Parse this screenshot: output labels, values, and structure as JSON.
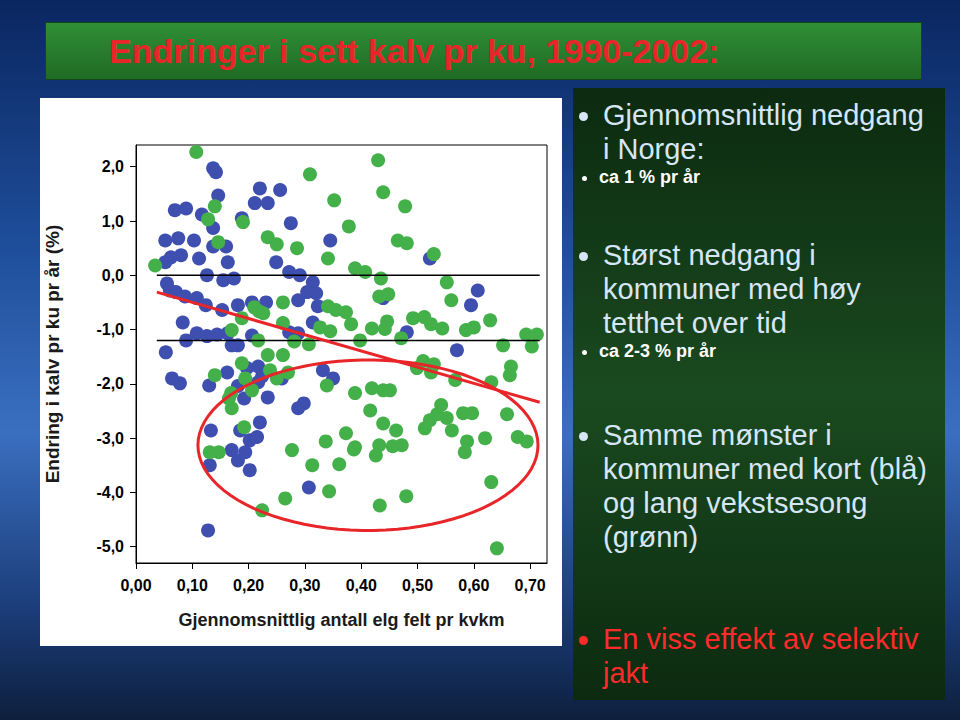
{
  "chart_data": {
    "type": "scatter",
    "title": "Endringer i sett kalv pr ku, 1990-2002:",
    "xlabel": "Gjennomsnittlig antall elg felt pr kvkm",
    "ylabel": "Endring i kalv pr ku pr år (%)",
    "xlim": [
      0,
      0.73
    ],
    "ylim": [
      -5.3,
      2.4
    ],
    "xticks": [
      {
        "value": 0,
        "label": "0,00"
      },
      {
        "value": 0.1,
        "label": "0,10"
      },
      {
        "value": 0.2,
        "label": "0,20"
      },
      {
        "value": 0.3,
        "label": "0,30"
      },
      {
        "value": 0.4,
        "label": "0,40"
      },
      {
        "value": 0.5,
        "label": "0,50"
      },
      {
        "value": 0.6,
        "label": "0,60"
      },
      {
        "value": 0.7,
        "label": "0,70"
      }
    ],
    "yticks": [
      {
        "value": -5,
        "label": "-5,0"
      },
      {
        "value": -4,
        "label": "-4,0"
      },
      {
        "value": -3,
        "label": "-3,0"
      },
      {
        "value": -2,
        "label": "-2,0"
      },
      {
        "value": -1,
        "label": "-1,0"
      },
      {
        "value": 0,
        "label": "0,0"
      },
      {
        "value": 1,
        "label": "1,0"
      },
      {
        "value": 2,
        "label": "2,0"
      }
    ],
    "grid": false,
    "series": [
      {
        "color": "#3e4fb0",
        "marker": "circle",
        "values": [
          [
            0.137,
            1.97
          ],
          [
            0.142,
            1.9
          ],
          [
            0.069,
            1.2
          ],
          [
            0.089,
            1.23
          ],
          [
            0.117,
            1.12
          ],
          [
            0.146,
            1.47
          ],
          [
            0.22,
            1.6
          ],
          [
            0.234,
            1.33
          ],
          [
            0.256,
            1.57
          ],
          [
            0.211,
            1.33
          ],
          [
            0.188,
            1.05
          ],
          [
            0.137,
            0.87
          ],
          [
            0.052,
            0.64
          ],
          [
            0.075,
            0.68
          ],
          [
            0.103,
            0.64
          ],
          [
            0.137,
            0.53
          ],
          [
            0.16,
            0.53
          ],
          [
            0.052,
            0.24
          ],
          [
            0.062,
            0.33
          ],
          [
            0.08,
            0.37
          ],
          [
            0.112,
            0.31
          ],
          [
            0.163,
            0.24
          ],
          [
            0.249,
            0.24
          ],
          [
            0.272,
            0.06
          ],
          [
            0.291,
            0
          ],
          [
            0.126,
            0
          ],
          [
            0.155,
            -0.09
          ],
          [
            0.174,
            -0.06
          ],
          [
            0.055,
            -0.15
          ],
          [
            0.06,
            -0.28
          ],
          [
            0.071,
            -0.31
          ],
          [
            0.087,
            -0.39
          ],
          [
            0.108,
            -0.42
          ],
          [
            0.124,
            -0.55
          ],
          [
            0.153,
            -0.64
          ],
          [
            0.181,
            -0.55
          ],
          [
            0.206,
            -0.5
          ],
          [
            0.231,
            -0.5
          ],
          [
            0.288,
            -0.46
          ],
          [
            0.323,
            -0.57
          ],
          [
            0.304,
            -0.31
          ],
          [
            0.314,
            -0.87
          ],
          [
            0.083,
            -0.87
          ],
          [
            0.108,
            -1.07
          ],
          [
            0.126,
            -1.12
          ],
          [
            0.144,
            -1.09
          ],
          [
            0.163,
            -1.07
          ],
          [
            0.181,
            -1.29
          ],
          [
            0.053,
            -1.42
          ],
          [
            0.089,
            -1.2
          ],
          [
            0.17,
            -1.29
          ],
          [
            0.206,
            -1.11
          ],
          [
            0.272,
            -1.05
          ],
          [
            0.288,
            -1.07
          ],
          [
            0.217,
            -1.68
          ],
          [
            0.224,
            -1.86
          ],
          [
            0.197,
            -1.71
          ],
          [
            0.162,
            -1.79
          ],
          [
            0.064,
            -1.9
          ],
          [
            0.078,
            -1.99
          ],
          [
            0.13,
            -2.03
          ],
          [
            0.181,
            -2.04
          ],
          [
            0.217,
            -1.97
          ],
          [
            0.259,
            -1.9
          ],
          [
            0.332,
            -1.75
          ],
          [
            0.35,
            -1.9
          ],
          [
            0.298,
            -2.36
          ],
          [
            0.288,
            -2.45
          ],
          [
            0.234,
            -2.25
          ],
          [
            0.192,
            -2.27
          ],
          [
            0.133,
            -2.86
          ],
          [
            0.185,
            -2.86
          ],
          [
            0.202,
            -3.04
          ],
          [
            0.194,
            -3.26
          ],
          [
            0.215,
            -2.98
          ],
          [
            0.22,
            -2.71
          ],
          [
            0.17,
            -3.22
          ],
          [
            0.181,
            -3.41
          ],
          [
            0.131,
            -3.5
          ],
          [
            0.202,
            -3.59
          ],
          [
            0.128,
            -4.7
          ],
          [
            0.307,
            -3.91
          ],
          [
            0.522,
            0.31
          ],
          [
            0.607,
            -0.28
          ],
          [
            0.57,
            -1.38
          ],
          [
            0.481,
            -1.05
          ],
          [
            0.595,
            -0.55
          ],
          [
            0.345,
            0.64
          ],
          [
            0.439,
            -0.42
          ],
          [
            0.275,
            0.96
          ],
          [
            0.314,
            -0.13
          ],
          [
            0.32,
            -0.33
          ]
        ]
      },
      {
        "color": "#44b04a",
        "marker": "circle",
        "values": [
          [
            0.107,
            2.27
          ],
          [
            0.034,
            0.18
          ],
          [
            0.14,
            1.27
          ],
          [
            0.128,
            1.03
          ],
          [
            0.146,
            0.61
          ],
          [
            0.19,
            0.98
          ],
          [
            0.234,
            0.7
          ],
          [
            0.25,
            0.57
          ],
          [
            0.286,
            0.5
          ],
          [
            0.309,
            1.86
          ],
          [
            0.341,
            0.31
          ],
          [
            0.352,
            1.38
          ],
          [
            0.378,
            0.9
          ],
          [
            0.43,
            2.12
          ],
          [
            0.439,
            1.53
          ],
          [
            0.478,
            1.27
          ],
          [
            0.465,
            0.64
          ],
          [
            0.481,
            0.59
          ],
          [
            0.529,
            0.39
          ],
          [
            0.552,
            -0.13
          ],
          [
            0.492,
            -0.79
          ],
          [
            0.389,
            0.13
          ],
          [
            0.407,
            0.06
          ],
          [
            0.435,
            -0.06
          ],
          [
            0.432,
            -0.39
          ],
          [
            0.448,
            -0.35
          ],
          [
            0.446,
            -0.85
          ],
          [
            0.341,
            -0.57
          ],
          [
            0.355,
            -0.64
          ],
          [
            0.373,
            -0.68
          ],
          [
            0.327,
            -0.96
          ],
          [
            0.345,
            -1.03
          ],
          [
            0.261,
            -0.88
          ],
          [
            0.17,
            -1.01
          ],
          [
            0.188,
            -0.79
          ],
          [
            0.21,
            -0.59
          ],
          [
            0.218,
            -0.66
          ],
          [
            0.226,
            -0.7
          ],
          [
            0.217,
            -1.2
          ],
          [
            0.281,
            -1.22
          ],
          [
            0.307,
            -1.27
          ],
          [
            0.261,
            -1.47
          ],
          [
            0.398,
            -1.2
          ],
          [
            0.419,
            -0.98
          ],
          [
            0.442,
            -0.99
          ],
          [
            0.471,
            -1.16
          ],
          [
            0.512,
            -0.77
          ],
          [
            0.524,
            -0.9
          ],
          [
            0.544,
            -0.98
          ],
          [
            0.56,
            -0.46
          ],
          [
            0.586,
            -1.01
          ],
          [
            0.6,
            -0.96
          ],
          [
            0.629,
            -0.83
          ],
          [
            0.652,
            -1.29
          ],
          [
            0.693,
            -1.09
          ],
          [
            0.712,
            -1.09
          ],
          [
            0.703,
            -1.31
          ],
          [
            0.238,
            -1.75
          ],
          [
            0.25,
            -1.9
          ],
          [
            0.27,
            -1.79
          ],
          [
            0.188,
            -1.62
          ],
          [
            0.194,
            -1.9
          ],
          [
            0.206,
            -2.12
          ],
          [
            0.14,
            -1.84
          ],
          [
            0.169,
            -2.17
          ],
          [
            0.234,
            -1.47
          ],
          [
            0.339,
            -2.03
          ],
          [
            0.389,
            -2.17
          ],
          [
            0.419,
            -2.08
          ],
          [
            0.439,
            -2.12
          ],
          [
            0.451,
            -2.12
          ],
          [
            0.416,
            -2.49
          ],
          [
            0.439,
            -2.73
          ],
          [
            0.499,
            -1.71
          ],
          [
            0.51,
            -1.58
          ],
          [
            0.524,
            -1.79
          ],
          [
            0.529,
            -1.64
          ],
          [
            0.567,
            -1.93
          ],
          [
            0.631,
            -1.97
          ],
          [
            0.664,
            -1.84
          ],
          [
            0.666,
            -1.68
          ],
          [
            0.659,
            -2.56
          ],
          [
            0.542,
            -2.39
          ],
          [
            0.552,
            -2.63
          ],
          [
            0.535,
            -2.56
          ],
          [
            0.522,
            -2.67
          ],
          [
            0.581,
            -2.54
          ],
          [
            0.597,
            -2.54
          ],
          [
            0.462,
            -2.86
          ],
          [
            0.432,
            -3.13
          ],
          [
            0.426,
            -3.32
          ],
          [
            0.456,
            -3.15
          ],
          [
            0.472,
            -3.13
          ],
          [
            0.513,
            -2.82
          ],
          [
            0.561,
            -2.86
          ],
          [
            0.588,
            -3.06
          ],
          [
            0.584,
            -3.26
          ],
          [
            0.62,
            -3.0
          ],
          [
            0.678,
            -2.98
          ],
          [
            0.694,
            -3.06
          ],
          [
            0.373,
            -2.91
          ],
          [
            0.387,
            -3.21
          ],
          [
            0.337,
            -3.06
          ],
          [
            0.313,
            -3.5
          ],
          [
            0.361,
            -3.48
          ],
          [
            0.277,
            -3.22
          ],
          [
            0.165,
            -2.27
          ],
          [
            0.17,
            -2.45
          ],
          [
            0.131,
            -3.26
          ],
          [
            0.192,
            -2.8
          ],
          [
            0.147,
            -3.26
          ],
          [
            0.224,
            -4.33
          ],
          [
            0.265,
            -4.11
          ],
          [
            0.343,
            -3.98
          ],
          [
            0.433,
            -4.24
          ],
          [
            0.48,
            -4.07
          ],
          [
            0.631,
            -3.81
          ],
          [
            0.641,
            -5.03
          ],
          [
            0.261,
            -0.5
          ],
          [
            0.382,
            -0.9
          ],
          [
            0.389,
            -3.17
          ]
        ]
      }
    ],
    "hlines": [
      {
        "y": 0,
        "x": [
          0.037,
          0.717
        ],
        "color": "#000000"
      },
      {
        "y": -1.2,
        "x": [
          0.037,
          0.717
        ],
        "color": "#000000"
      }
    ],
    "trend_line": {
      "x": [
        0.037,
        0.717
      ],
      "y": [
        -0.31,
        -2.34
      ],
      "color": "#e8262a"
    },
    "highlight_ellipse": {
      "cx": 0.412,
      "cy": -3.13,
      "rx": 0.302,
      "ry": 1.57,
      "color": "#e8262a"
    }
  },
  "panel": [
    {
      "text": "Gjennomsnittlig nedgang i Norge:",
      "sub": [
        "ca 1 % pr år"
      ]
    },
    {
      "text": "Størst nedgang i kommuner med høy tetthet over tid",
      "sub": [
        "ca 2-3 % pr år"
      ]
    },
    {
      "text": "Samme mønster i kommuner med kort (blå) og lang vekstsesong (grønn)",
      "sub": []
    },
    {
      "text": "En viss effekt av selektiv jakt",
      "sub": [],
      "color": "#ff2a2a"
    }
  ]
}
